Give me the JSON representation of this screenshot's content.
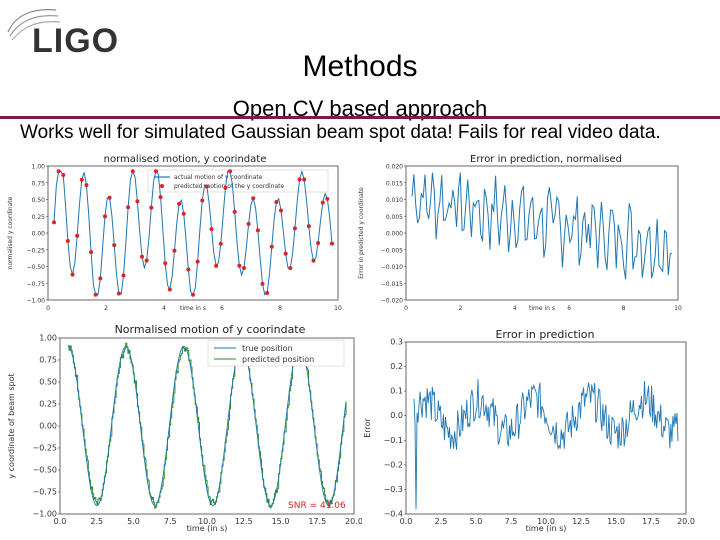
{
  "logo": {
    "text": "LIGO"
  },
  "title": "Methods",
  "subtitle": "Open.CV based approach",
  "caption": "Works well for simulated Gaussian beam spot data! Fails for real video data.",
  "charts": {
    "top_left": {
      "title": "normalised motion, y coorindate",
      "ylabel": "normalised y coordinate",
      "xlabel": "time in s",
      "legend": [
        "actual motion of y coordinate",
        "predicted motion of the y coordinate"
      ],
      "yticks": [
        "1.00",
        "0.75",
        "0.50",
        "0.25",
        "0.00",
        "−0.25",
        "−0.50",
        "−0.75",
        "−1.00"
      ],
      "xticks": [
        "0",
        "2",
        "4",
        "6",
        "8",
        "10"
      ]
    },
    "top_right": {
      "title": "Error in prediction, normalised",
      "ylabel": "Error in predicted y coordinate",
      "xlabel": "time in s",
      "yticks": [
        "0.020",
        "0.015",
        "0.010",
        "0.005",
        "0.000",
        "−0.005",
        "−0.010",
        "−0.015",
        "−0.020"
      ],
      "xticks": [
        "0",
        "2",
        "4",
        "6",
        "8",
        "10"
      ]
    },
    "bottom_left": {
      "title": "Normalised motion of y coorindate",
      "ylabel": "y coordinate of beam spot",
      "xlabel": "time (in s)",
      "legend": [
        "true position",
        "predicted position"
      ],
      "annotation": "SNR = 41.06",
      "yticks": [
        "1.00",
        "0.75",
        "0.50",
        "0.25",
        "0.00",
        "−0.25",
        "−0.50",
        "−0.75",
        "−1.00"
      ],
      "xticks": [
        "0.0",
        "2.5",
        "5.0",
        "7.5",
        "10.0",
        "12.5",
        "15.0",
        "17.5",
        "20.0"
      ]
    },
    "bottom_right": {
      "title": "Error in prediction",
      "ylabel": "Error",
      "xlabel": "time (in s)",
      "yticks": [
        "0.3",
        "0.2",
        "0.1",
        "0.0",
        "−0.1",
        "−0.2",
        "−0.3",
        "−0.4"
      ],
      "xticks": [
        "0.0",
        "2.5",
        "5.0",
        "7.5",
        "10.0",
        "12.5",
        "15.0",
        "17.5",
        "20.0"
      ]
    }
  },
  "colors": {
    "line_blue": "#1f77b4",
    "dot_red": "#d62728",
    "green": "#2e8b2e",
    "rule": "#7a1a4a"
  },
  "chart_data": [
    {
      "type": "line",
      "title": "normalised motion, y coorindate",
      "xlabel": "time in s",
      "ylabel": "normalised y coordinate",
      "xlim": [
        0,
        10
      ],
      "ylim": [
        -1.0,
        1.0
      ],
      "series": [
        {
          "name": "actual motion of y coordinate"
        },
        {
          "name": "predicted motion of the y coordinate"
        }
      ]
    },
    {
      "type": "line",
      "title": "Error in prediction, normalised",
      "xlabel": "time in s",
      "ylabel": "Error in predicted y coordinate",
      "xlim": [
        0,
        10
      ],
      "ylim": [
        -0.02,
        0.02
      ]
    },
    {
      "type": "line",
      "title": "Normalised motion of y coorindate",
      "xlabel": "time (in s)",
      "ylabel": "y coordinate of beam spot",
      "xlim": [
        0,
        20
      ],
      "ylim": [
        -1.0,
        1.0
      ],
      "series": [
        {
          "name": "true position"
        },
        {
          "name": "predicted position"
        }
      ]
    },
    {
      "type": "line",
      "title": "Error in prediction",
      "xlabel": "time (in s)",
      "ylabel": "Error",
      "xlim": [
        0,
        20
      ],
      "ylim": [
        -0.4,
        0.3
      ]
    }
  ]
}
